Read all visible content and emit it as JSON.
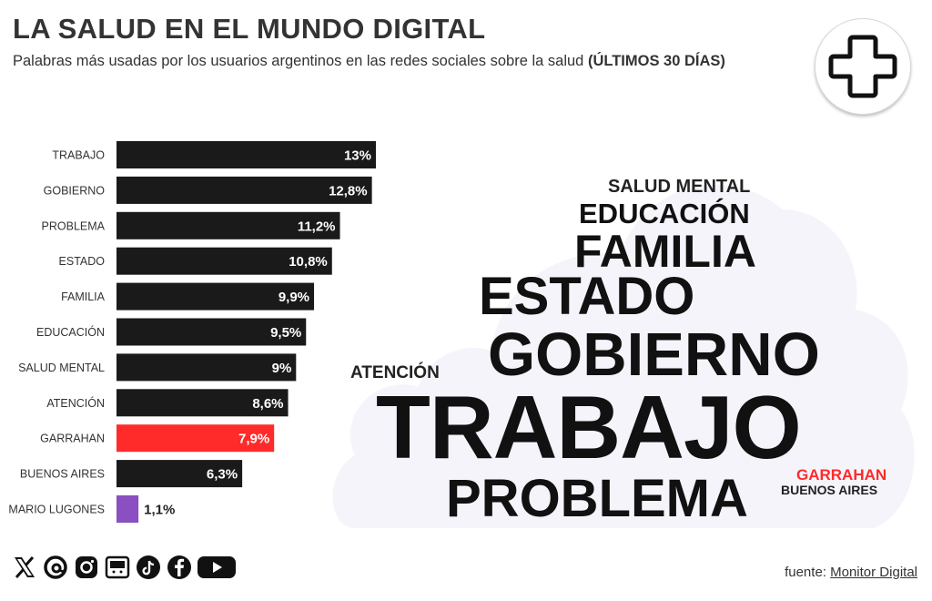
{
  "header": {
    "title": "LA SALUD EN EL MUNDO DIGITAL",
    "subtitle": "Palabras más usadas por los usuarios argentinos en las redes sociales sobre la salud",
    "subtitle_emph": "(ÚLTIMOS 30 DÍAS)"
  },
  "logo": {
    "icon": "medical-cross-icon"
  },
  "chart_data": {
    "type": "bar",
    "orientation": "horizontal",
    "categories": [
      "TRABAJO",
      "GOBIERNO",
      "PROBLEMA",
      "ESTADO",
      "FAMILIA",
      "EDUCACIÓN",
      "SALUD MENTAL",
      "ATENCIÓN",
      "GARRAHAN",
      "BUENOS AIRES",
      "MARIO LUGONES"
    ],
    "values": [
      13,
      12.8,
      11.2,
      10.8,
      9.9,
      9.5,
      9,
      8.6,
      7.9,
      6.3,
      1.1
    ],
    "value_labels": [
      "13%",
      "12,8%",
      "11,2%",
      "10,8%",
      "9,9%",
      "9,5%",
      "9%",
      "8,6%",
      "7,9%",
      "6,3%",
      "1,1%"
    ],
    "colors": [
      "#1a1a1a",
      "#1a1a1a",
      "#1a1a1a",
      "#1a1a1a",
      "#1a1a1a",
      "#1a1a1a",
      "#1a1a1a",
      "#1a1a1a",
      "#ff2a2a",
      "#1a1a1a",
      "#8a4fc0"
    ],
    "xlim": [
      0,
      13
    ],
    "title": "",
    "xlabel": "",
    "ylabel": ""
  },
  "word_cloud": {
    "words": [
      {
        "text": "SALUD MENTAL",
        "color": "#222222"
      },
      {
        "text": "EDUCACIÓN",
        "color": "#111111"
      },
      {
        "text": "FAMILIA",
        "color": "#111111"
      },
      {
        "text": "ESTADO",
        "color": "#111111"
      },
      {
        "text": "GOBIERNO",
        "color": "#111111"
      },
      {
        "text": "ATENCIÓN",
        "color": "#222222"
      },
      {
        "text": "TRABAJO",
        "color": "#111111"
      },
      {
        "text": "GARRAHAN",
        "color": "#ff2a2a"
      },
      {
        "text": "BUENOS AIRES",
        "color": "#222222"
      },
      {
        "text": "PROBLEMA",
        "color": "#111111"
      }
    ]
  },
  "social": [
    "x-icon",
    "threads-icon",
    "instagram-icon",
    "newsletter-icon",
    "tiktok-icon",
    "facebook-icon",
    "youtube-icon"
  ],
  "footer": {
    "source_prefix": "fuente:",
    "source_name": "Monitor Digital"
  }
}
